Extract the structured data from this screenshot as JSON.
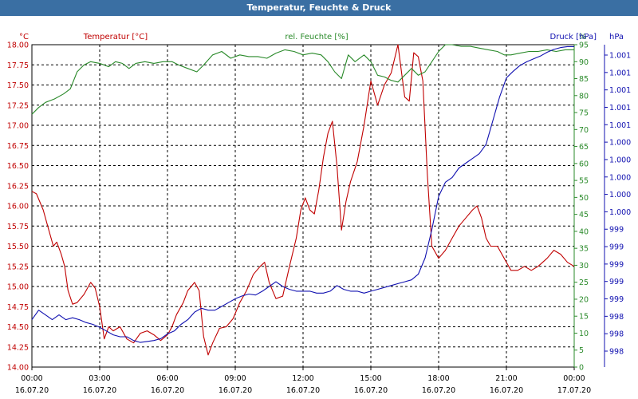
{
  "window": {
    "title": "Temperatur, Feuchte & Druck"
  },
  "chart_data": {
    "type": "line",
    "title": "Temperatur, Feuchte & Druck",
    "grid": true,
    "x": {
      "min": 0,
      "max": 24,
      "ticks": [
        {
          "time": "00:00",
          "date": "16.07.20"
        },
        {
          "time": "03:00",
          "date": "16.07.20"
        },
        {
          "time": "06:00",
          "date": "16.07.20"
        },
        {
          "time": "09:00",
          "date": "16.07.20"
        },
        {
          "time": "12:00",
          "date": "16.07.20"
        },
        {
          "time": "15:00",
          "date": "16.07.20"
        },
        {
          "time": "18:00",
          "date": "16.07.20"
        },
        {
          "time": "21:00",
          "date": "16.07.20"
        },
        {
          "time": "00:00",
          "date": "17.07.20"
        }
      ]
    },
    "axes": {
      "temperature": {
        "label": "Temperatur [°C]",
        "unit": "°C",
        "color": "#c00000",
        "min": 14.0,
        "max": 18.0,
        "ticks": [
          "14.00",
          "14.25",
          "14.50",
          "14.75",
          "15.00",
          "15.25",
          "15.50",
          "15.75",
          "16.00",
          "16.25",
          "16.50",
          "16.75",
          "17.00",
          "17.25",
          "17.50",
          "17.75",
          "18.00"
        ]
      },
      "humidity": {
        "label": "rel. Feuchte [%]",
        "unit": "%",
        "color": "#2a8a2a",
        "min": 0,
        "max": 95,
        "ticks": [
          "0",
          "5",
          "10",
          "15",
          "20",
          "25",
          "30",
          "35",
          "40",
          "45",
          "50",
          "55",
          "60",
          "65",
          "70",
          "75",
          "80",
          "85",
          "90",
          "95"
        ]
      },
      "pressure": {
        "label": "Druck [hPa]",
        "unit": "hPa",
        "color": "#1010b0",
        "min": 997.8,
        "max": 1001.2,
        "ticks": [
          "998",
          "998",
          "998",
          "999",
          "999",
          "999",
          "999",
          "999",
          "1.000",
          "1.000",
          "1.000",
          "1.000",
          "1.000",
          "1.001",
          "1.001",
          "1.001",
          "1.001",
          "1.001"
        ]
      }
    },
    "series": [
      {
        "name": "Temperatur [°C]",
        "axis": "temperature",
        "color": "#c00000",
        "points": [
          [
            0,
            16.18
          ],
          [
            0.2,
            16.15
          ],
          [
            0.5,
            15.95
          ],
          [
            0.7,
            15.75
          ],
          [
            0.95,
            15.5
          ],
          [
            1.1,
            15.55
          ],
          [
            1.3,
            15.4
          ],
          [
            1.45,
            15.25
          ],
          [
            1.6,
            14.95
          ],
          [
            1.8,
            14.78
          ],
          [
            2.0,
            14.8
          ],
          [
            2.3,
            14.9
          ],
          [
            2.6,
            15.05
          ],
          [
            2.8,
            14.98
          ],
          [
            3.0,
            14.75
          ],
          [
            3.2,
            14.35
          ],
          [
            3.4,
            14.5
          ],
          [
            3.6,
            14.45
          ],
          [
            3.9,
            14.5
          ],
          [
            4.2,
            14.35
          ],
          [
            4.5,
            14.3
          ],
          [
            4.8,
            14.42
          ],
          [
            5.1,
            14.45
          ],
          [
            5.4,
            14.4
          ],
          [
            5.7,
            14.33
          ],
          [
            6.0,
            14.4
          ],
          [
            6.2,
            14.5
          ],
          [
            6.4,
            14.65
          ],
          [
            6.7,
            14.8
          ],
          [
            6.9,
            14.95
          ],
          [
            7.2,
            15.05
          ],
          [
            7.4,
            14.95
          ],
          [
            7.6,
            14.38
          ],
          [
            7.8,
            14.15
          ],
          [
            8.0,
            14.3
          ],
          [
            8.3,
            14.48
          ],
          [
            8.6,
            14.5
          ],
          [
            8.9,
            14.6
          ],
          [
            9.2,
            14.8
          ],
          [
            9.5,
            14.95
          ],
          [
            9.8,
            15.15
          ],
          [
            10.1,
            15.25
          ],
          [
            10.3,
            15.3
          ],
          [
            10.5,
            15.05
          ],
          [
            10.8,
            14.85
          ],
          [
            11.1,
            14.88
          ],
          [
            11.4,
            15.25
          ],
          [
            11.7,
            15.6
          ],
          [
            11.9,
            15.95
          ],
          [
            12.1,
            16.1
          ],
          [
            12.3,
            15.95
          ],
          [
            12.5,
            15.9
          ],
          [
            12.7,
            16.2
          ],
          [
            12.9,
            16.6
          ],
          [
            13.1,
            16.9
          ],
          [
            13.3,
            17.05
          ],
          [
            13.5,
            16.5
          ],
          [
            13.7,
            15.7
          ],
          [
            13.9,
            16.05
          ],
          [
            14.1,
            16.3
          ],
          [
            14.4,
            16.55
          ],
          [
            14.7,
            17.0
          ],
          [
            15.0,
            17.55
          ],
          [
            15.3,
            17.25
          ],
          [
            15.6,
            17.5
          ],
          [
            15.9,
            17.65
          ],
          [
            16.2,
            18.0
          ],
          [
            16.5,
            17.35
          ],
          [
            16.7,
            17.3
          ],
          [
            16.9,
            17.9
          ],
          [
            17.1,
            17.85
          ],
          [
            17.3,
            17.55
          ],
          [
            17.5,
            16.4
          ],
          [
            17.7,
            15.5
          ],
          [
            18.0,
            15.35
          ],
          [
            18.3,
            15.45
          ],
          [
            18.6,
            15.6
          ],
          [
            18.9,
            15.75
          ],
          [
            19.2,
            15.85
          ],
          [
            19.5,
            15.95
          ],
          [
            19.7,
            16.0
          ],
          [
            19.9,
            15.85
          ],
          [
            20.1,
            15.6
          ],
          [
            20.3,
            15.5
          ],
          [
            20.6,
            15.5
          ],
          [
            20.9,
            15.35
          ],
          [
            21.2,
            15.2
          ],
          [
            21.5,
            15.2
          ],
          [
            21.8,
            15.25
          ],
          [
            22.1,
            15.2
          ],
          [
            22.4,
            15.25
          ],
          [
            22.8,
            15.35
          ],
          [
            23.1,
            15.45
          ],
          [
            23.4,
            15.4
          ],
          [
            23.7,
            15.3
          ],
          [
            24.0,
            15.25
          ]
        ]
      },
      {
        "name": "rel. Feuchte [%]",
        "axis": "humidity",
        "color": "#2a8a2a",
        "points": [
          [
            0,
            74.5
          ],
          [
            0.3,
            76.5
          ],
          [
            0.6,
            78
          ],
          [
            1.0,
            79
          ],
          [
            1.4,
            80.5
          ],
          [
            1.7,
            82
          ],
          [
            2.0,
            87
          ],
          [
            2.3,
            89
          ],
          [
            2.6,
            90
          ],
          [
            3.0,
            89.5
          ],
          [
            3.4,
            88.5
          ],
          [
            3.7,
            90
          ],
          [
            4.0,
            89.5
          ],
          [
            4.3,
            88
          ],
          [
            4.6,
            89.5
          ],
          [
            5.0,
            90
          ],
          [
            5.4,
            89.5
          ],
          [
            5.8,
            90
          ],
          [
            6.2,
            90
          ],
          [
            6.5,
            89
          ],
          [
            6.9,
            88
          ],
          [
            7.3,
            87
          ],
          [
            7.6,
            89
          ],
          [
            8.0,
            92
          ],
          [
            8.4,
            93
          ],
          [
            8.8,
            91
          ],
          [
            9.2,
            92
          ],
          [
            9.6,
            91.5
          ],
          [
            10.0,
            91.5
          ],
          [
            10.4,
            91
          ],
          [
            10.8,
            92.5
          ],
          [
            11.2,
            93.5
          ],
          [
            11.6,
            93
          ],
          [
            12.0,
            92
          ],
          [
            12.4,
            92.5
          ],
          [
            12.8,
            92
          ],
          [
            13.1,
            90
          ],
          [
            13.4,
            87
          ],
          [
            13.7,
            85
          ],
          [
            14.0,
            92
          ],
          [
            14.3,
            90
          ],
          [
            14.7,
            92
          ],
          [
            15.0,
            90
          ],
          [
            15.3,
            86
          ],
          [
            15.6,
            85.5
          ],
          [
            15.9,
            84.5
          ],
          [
            16.2,
            84
          ],
          [
            16.5,
            86
          ],
          [
            16.8,
            88
          ],
          [
            17.1,
            86
          ],
          [
            17.4,
            87
          ],
          [
            17.7,
            90
          ],
          [
            18.0,
            93
          ],
          [
            18.3,
            95
          ],
          [
            18.6,
            95
          ],
          [
            19.0,
            94.5
          ],
          [
            19.4,
            94.5
          ],
          [
            19.8,
            94
          ],
          [
            20.2,
            93.5
          ],
          [
            20.6,
            93
          ],
          [
            20.9,
            92
          ],
          [
            21.2,
            92
          ],
          [
            21.6,
            92.5
          ],
          [
            22.0,
            93
          ],
          [
            22.4,
            93
          ],
          [
            22.8,
            93.5
          ],
          [
            23.2,
            93
          ],
          [
            23.6,
            93.5
          ],
          [
            24.0,
            93.5
          ]
        ]
      },
      {
        "name": "Druck [hPa]",
        "axis": "pressure",
        "color": "#1010b0",
        "points": [
          [
            0,
            998.3
          ],
          [
            0.3,
            998.4
          ],
          [
            0.6,
            998.35
          ],
          [
            0.9,
            998.3
          ],
          [
            1.2,
            998.35
          ],
          [
            1.5,
            998.3
          ],
          [
            1.8,
            998.32
          ],
          [
            2.1,
            998.3
          ],
          [
            2.4,
            998.27
          ],
          [
            2.7,
            998.25
          ],
          [
            3.0,
            998.22
          ],
          [
            3.3,
            998.18
          ],
          [
            3.6,
            998.14
          ],
          [
            3.9,
            998.12
          ],
          [
            4.2,
            998.12
          ],
          [
            4.5,
            998.08
          ],
          [
            4.8,
            998.06
          ],
          [
            5.1,
            998.07
          ],
          [
            5.4,
            998.08
          ],
          [
            5.7,
            998.1
          ],
          [
            6.0,
            998.15
          ],
          [
            6.3,
            998.18
          ],
          [
            6.6,
            998.25
          ],
          [
            6.9,
            998.3
          ],
          [
            7.2,
            998.38
          ],
          [
            7.5,
            998.42
          ],
          [
            7.8,
            998.4
          ],
          [
            8.1,
            998.4
          ],
          [
            8.4,
            998.44
          ],
          [
            8.7,
            998.48
          ],
          [
            9.0,
            998.52
          ],
          [
            9.3,
            998.55
          ],
          [
            9.6,
            998.57
          ],
          [
            9.9,
            998.56
          ],
          [
            10.2,
            998.6
          ],
          [
            10.5,
            998.65
          ],
          [
            10.8,
            998.7
          ],
          [
            11.1,
            998.65
          ],
          [
            11.4,
            998.62
          ],
          [
            11.7,
            998.6
          ],
          [
            12.0,
            998.6
          ],
          [
            12.3,
            998.6
          ],
          [
            12.6,
            998.58
          ],
          [
            12.9,
            998.58
          ],
          [
            13.2,
            998.6
          ],
          [
            13.5,
            998.66
          ],
          [
            13.8,
            998.62
          ],
          [
            14.1,
            998.6
          ],
          [
            14.4,
            998.6
          ],
          [
            14.7,
            998.58
          ],
          [
            15.0,
            998.6
          ],
          [
            15.3,
            998.62
          ],
          [
            15.6,
            998.64
          ],
          [
            15.9,
            998.66
          ],
          [
            16.2,
            998.68
          ],
          [
            16.5,
            998.7
          ],
          [
            16.8,
            998.72
          ],
          [
            17.1,
            998.78
          ],
          [
            17.4,
            998.95
          ],
          [
            17.7,
            999.25
          ],
          [
            18.0,
            999.6
          ],
          [
            18.3,
            999.75
          ],
          [
            18.6,
            999.8
          ],
          [
            18.9,
            999.9
          ],
          [
            19.2,
            999.95
          ],
          [
            19.5,
            1000.0
          ],
          [
            19.8,
            1000.05
          ],
          [
            20.1,
            1000.15
          ],
          [
            20.4,
            1000.4
          ],
          [
            20.7,
            1000.65
          ],
          [
            21.0,
            1000.85
          ],
          [
            21.3,
            1000.92
          ],
          [
            21.6,
            1000.98
          ],
          [
            21.9,
            1001.02
          ],
          [
            22.2,
            1001.05
          ],
          [
            22.5,
            1001.08
          ],
          [
            22.8,
            1001.12
          ],
          [
            23.1,
            1001.15
          ],
          [
            23.4,
            1001.17
          ],
          [
            23.7,
            1001.18
          ],
          [
            24.0,
            1001.18
          ]
        ]
      }
    ]
  }
}
